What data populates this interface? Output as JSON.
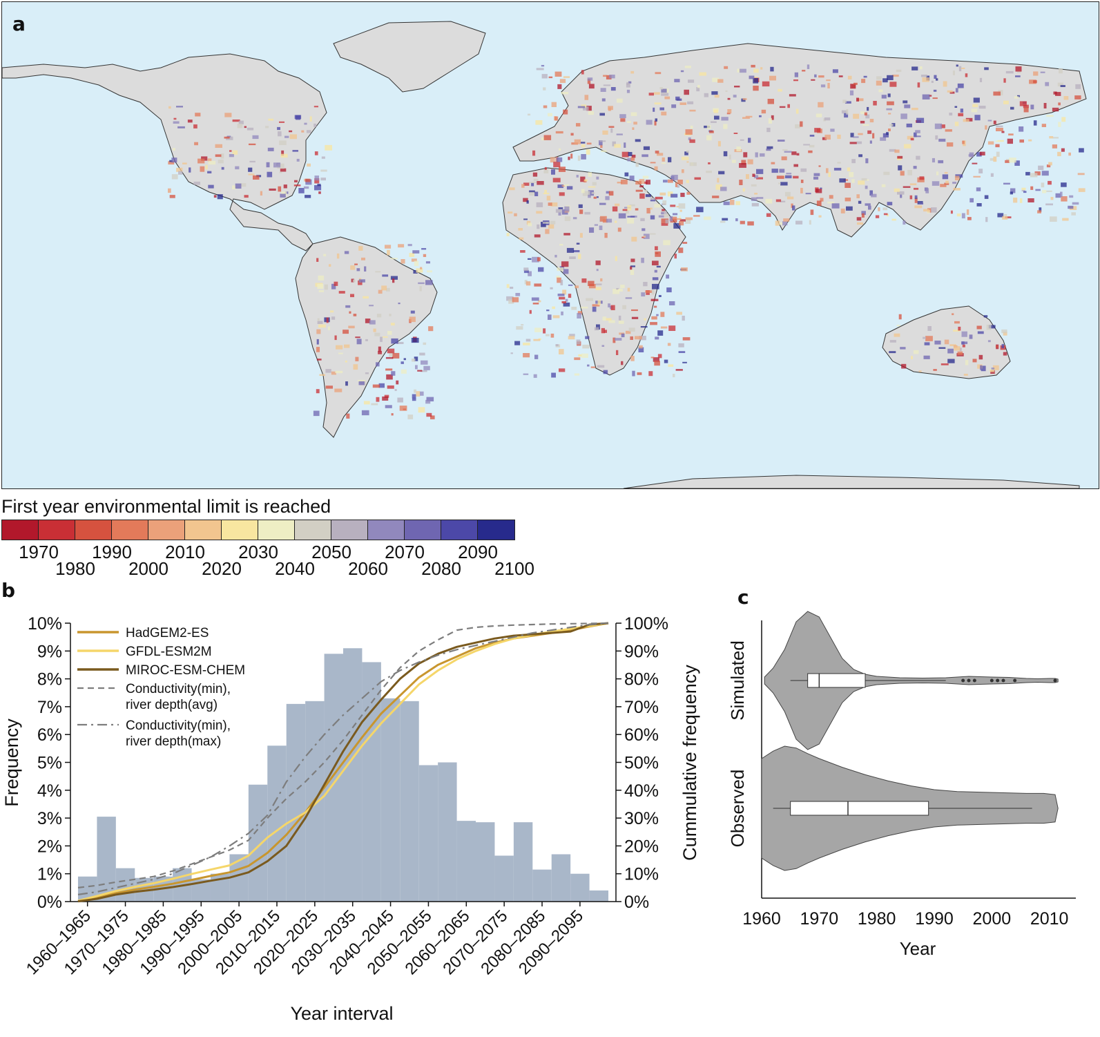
{
  "panel_a": {
    "letter": "a",
    "colorbar": {
      "title": "First year environmental limit is reached",
      "colors": [
        "#b2182b",
        "#c92f35",
        "#d6523f",
        "#e37a5a",
        "#eba17a",
        "#f2c58f",
        "#f8e6a0",
        "#eeeec4",
        "#d2cfc4",
        "#b8b0bf",
        "#9188bd",
        "#6f66b1",
        "#4c48a8",
        "#272a8c"
      ],
      "labels_top": [
        "1970",
        "1990",
        "2010",
        "2030",
        "2050",
        "2070",
        "2090"
      ],
      "labels_bottom": [
        "1980",
        "2000",
        "2020",
        "2040",
        "2060",
        "2080",
        "2100"
      ]
    }
  },
  "panel_b": {
    "letter": "b",
    "legend": [
      {
        "name": "HadGEM2-ES",
        "color": "#c8962e",
        "dash": "solid"
      },
      {
        "name": "GFDL-ESM2M",
        "color": "#f5d66a",
        "dash": "solid"
      },
      {
        "name": "MIROC-ESM-CHEM",
        "color": "#7a5a1e",
        "dash": "solid"
      },
      {
        "name": "Conductivity(min),",
        "name2": "river depth(avg)",
        "color": "#7d7d7d",
        "dash": "dash"
      },
      {
        "name": "Conductivity(min),",
        "name2": "river depth(max)",
        "color": "#7d7d7d",
        "dash": "dashdot"
      }
    ]
  },
  "panel_c": {
    "letter": "c"
  },
  "chart_data": [
    {
      "type": "bar",
      "panel": "b",
      "xlabel": "Year interval",
      "ylabel": "Frequency",
      "y2label": "Cummulative frequency",
      "ylim": [
        0,
        10
      ],
      "y2lim": [
        0,
        100
      ],
      "y_ticks": [
        "0%",
        "1%",
        "2%",
        "3%",
        "4%",
        "5%",
        "6%",
        "7%",
        "8%",
        "9%",
        "10%"
      ],
      "y2_ticks": [
        "0%",
        "10%",
        "20%",
        "30%",
        "40%",
        "50%",
        "60%",
        "70%",
        "80%",
        "90%",
        "100%"
      ],
      "x_tick_labels": [
        "1960–1965",
        "1970–1975",
        "1980–1985",
        "1990–1995",
        "2000–2005",
        "2010–2015",
        "2020–2025",
        "2030–2035",
        "2040–2045",
        "2050–2055",
        "2060–2065",
        "2070–2075",
        "2080–2085",
        "2090–2095"
      ],
      "bin_starts": [
        1960,
        1965,
        1970,
        1975,
        1980,
        1985,
        1990,
        1995,
        2000,
        2005,
        2010,
        2015,
        2020,
        2025,
        2030,
        2035,
        2040,
        2045,
        2050,
        2055,
        2060,
        2065,
        2070,
        2075,
        2080,
        2085,
        2090,
        2095
      ],
      "values": [
        0.9,
        3.05,
        1.2,
        0.85,
        0.9,
        1.2,
        0.8,
        1.0,
        1.7,
        4.2,
        5.6,
        7.1,
        7.2,
        8.9,
        9.1,
        8.6,
        7.3,
        7.2,
        4.9,
        5.0,
        2.9,
        2.85,
        1.65,
        2.85,
        1.15,
        1.7,
        1.0,
        0.4
      ],
      "bar_color": "#a9b7c9",
      "cumulative_series": [
        {
          "name": "HadGEM2-ES",
          "x": [
            1960,
            1965,
            1970,
            1975,
            1980,
            1985,
            1990,
            1995,
            2000,
            2005,
            2010,
            2015,
            2020,
            2025,
            2030,
            2035,
            2040,
            2045,
            2050,
            2055,
            2060,
            2065,
            2070,
            2075,
            2080,
            2085,
            2090,
            2095,
            2100
          ],
          "values": [
            0.2,
            1.5,
            3.0,
            4.3,
            5.3,
            6.4,
            7.8,
            9.2,
            10.5,
            12.8,
            17.5,
            24,
            32,
            41,
            50,
            59,
            67.5,
            74,
            80.5,
            85,
            88,
            91,
            93,
            94.5,
            95.5,
            96.5,
            97.5,
            98.8,
            100
          ]
        },
        {
          "name": "GFDL-ESM2M",
          "x": [
            1960,
            1965,
            1970,
            1975,
            1980,
            1985,
            1990,
            1995,
            2000,
            2005,
            2010,
            2015,
            2020,
            2025,
            2030,
            2035,
            2040,
            2045,
            2050,
            2055,
            2060,
            2065,
            2070,
            2075,
            2080,
            2085,
            2090,
            2095,
            2100
          ],
          "values": [
            0.3,
            2.0,
            3.8,
            5.3,
            6.6,
            8.2,
            9.9,
            11.5,
            13.0,
            16.5,
            23,
            28,
            32,
            38,
            47,
            56,
            64,
            71,
            78,
            83,
            87,
            90,
            92.5,
            94.5,
            95.8,
            97,
            98,
            99,
            100
          ]
        },
        {
          "name": "MIROC-ESM-CHEM",
          "x": [
            1960,
            1965,
            1970,
            1975,
            1980,
            1985,
            1990,
            1995,
            2000,
            2005,
            2010,
            2015,
            2020,
            2025,
            2030,
            2035,
            2040,
            2045,
            2050,
            2055,
            2060,
            2065,
            2070,
            2075,
            2080,
            2085,
            2090,
            2095,
            2100
          ],
          "values": [
            0.1,
            1.0,
            2.5,
            3.5,
            4.3,
            5.2,
            6.3,
            7.5,
            8.6,
            10.5,
            14.5,
            20,
            30,
            42,
            54,
            64.5,
            72.5,
            80,
            85.5,
            89,
            91.5,
            93,
            94.5,
            95.5,
            96,
            96.5,
            97,
            99.5,
            100
          ]
        },
        {
          "name": "Conductivity(min), river depth(avg)",
          "x": [
            1960,
            1965,
            1970,
            1975,
            1980,
            1985,
            1990,
            1995,
            2000,
            2005,
            2010,
            2015,
            2020,
            2025,
            2030,
            2035,
            2040,
            2045,
            2050,
            2055,
            2060,
            2065,
            2070,
            2075,
            2080,
            2085,
            2090,
            2095,
            2100
          ],
          "values": [
            5.0,
            5.8,
            7.0,
            8.0,
            9.0,
            11.0,
            13.5,
            16.0,
            18.5,
            22,
            30,
            37,
            43,
            50,
            58,
            67,
            76,
            84,
            90,
            94,
            97.5,
            98.5,
            99,
            99.3,
            99.5,
            99.7,
            99.8,
            99.9,
            100
          ]
        },
        {
          "name": "Conductivity(min), river depth(max)",
          "x": [
            1960,
            1965,
            1970,
            1975,
            1980,
            1985,
            1990,
            1995,
            2000,
            2005,
            2010,
            2015,
            2020,
            2025,
            2030,
            2035,
            2040,
            2045,
            2050,
            2055,
            2060,
            2065,
            2070,
            2075,
            2080,
            2085,
            2090,
            2095,
            2100
          ],
          "values": [
            2.5,
            3.5,
            5.0,
            6.5,
            8.0,
            10.0,
            13.0,
            16.0,
            20.0,
            24.5,
            31,
            43,
            52,
            60,
            67,
            73,
            79,
            83,
            86,
            88.5,
            90.5,
            92,
            93.5,
            95,
            96.5,
            97.5,
            98.5,
            99.5,
            100
          ]
        }
      ]
    },
    {
      "type": "violin",
      "panel": "c",
      "xlabel": "Year",
      "x_ticks": [
        "1960",
        "1970",
        "1980",
        "1990",
        "2000",
        "2010"
      ],
      "xlim": [
        1960,
        2014
      ],
      "fill_color": "#a6a6a6",
      "groups": [
        {
          "name": "Simulated",
          "min": 1965,
          "q1": 1968,
          "median": 1970,
          "q3": 1978,
          "whisker_max": 1992,
          "outliers": [
            1995,
            1996,
            1997,
            2000,
            2001,
            2002,
            2004,
            2011
          ],
          "density_x": [
            1960.5,
            1962,
            1964,
            1966,
            1968,
            1970,
            1972,
            1974,
            1976,
            1978,
            1980,
            1984,
            1988,
            1992,
            1994,
            1996,
            1998,
            2000,
            2003,
            2006,
            2008,
            2010,
            2011,
            2011.5
          ],
          "density_w": [
            0.05,
            0.18,
            0.45,
            0.85,
            1.0,
            0.92,
            0.62,
            0.32,
            0.16,
            0.09,
            0.06,
            0.04,
            0.035,
            0.04,
            0.05,
            0.06,
            0.055,
            0.05,
            0.045,
            0.03,
            0.025,
            0.03,
            0.03,
            0.02
          ]
        },
        {
          "name": "Observed",
          "min": 1962,
          "q1": 1965,
          "median": 1975,
          "q3": 1989,
          "whisker_max": 2007,
          "outliers": [],
          "density_x": [
            1960,
            1962,
            1964,
            1966,
            1968,
            1970,
            1974,
            1978,
            1982,
            1986,
            1990,
            1994,
            1998,
            2002,
            2006,
            2009,
            2011,
            2011.5
          ],
          "density_w": [
            0.8,
            0.92,
            1.0,
            0.97,
            0.88,
            0.8,
            0.66,
            0.54,
            0.44,
            0.36,
            0.3,
            0.27,
            0.26,
            0.25,
            0.24,
            0.24,
            0.22,
            0.0
          ]
        }
      ]
    }
  ]
}
